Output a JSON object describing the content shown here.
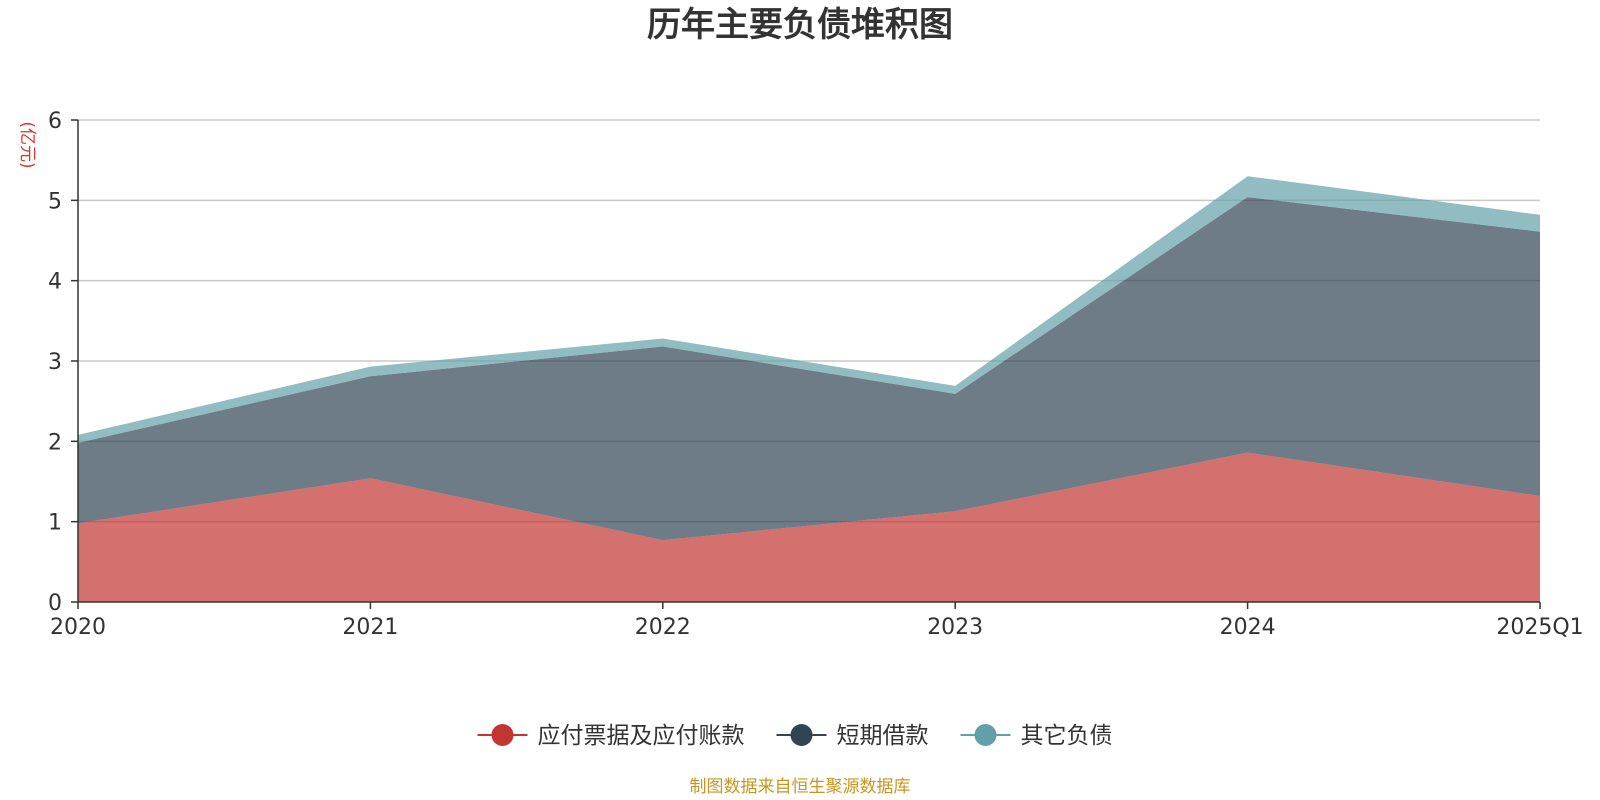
{
  "chart_data": {
    "type": "area",
    "stacked": true,
    "title": "历年主要负债堆积图",
    "ylabel": "(亿元)",
    "categories": [
      "2020",
      "2021",
      "2022",
      "2023",
      "2024",
      "2025Q1"
    ],
    "ylim": [
      0,
      6
    ],
    "yticks": [
      "0",
      "1",
      "2",
      "3",
      "4",
      "5",
      "6"
    ],
    "grid": true,
    "legend_position": "bottom",
    "series": [
      {
        "name": "应付票据及应付账款",
        "values": [
          0.98,
          1.54,
          0.77,
          1.13,
          1.86,
          1.32
        ],
        "color": "#c23531"
      },
      {
        "name": "短期借款",
        "values": [
          1.0,
          1.27,
          2.41,
          1.46,
          3.18,
          3.29
        ],
        "color": "#2f4554"
      },
      {
        "name": "其它负债",
        "values": [
          0.1,
          0.12,
          0.1,
          0.1,
          0.26,
          0.21
        ],
        "color": "#61a0a8"
      }
    ],
    "source": "制图数据来自恒生聚源数据库",
    "unit_color": "#e03131",
    "source_color": "#c8951f"
  }
}
